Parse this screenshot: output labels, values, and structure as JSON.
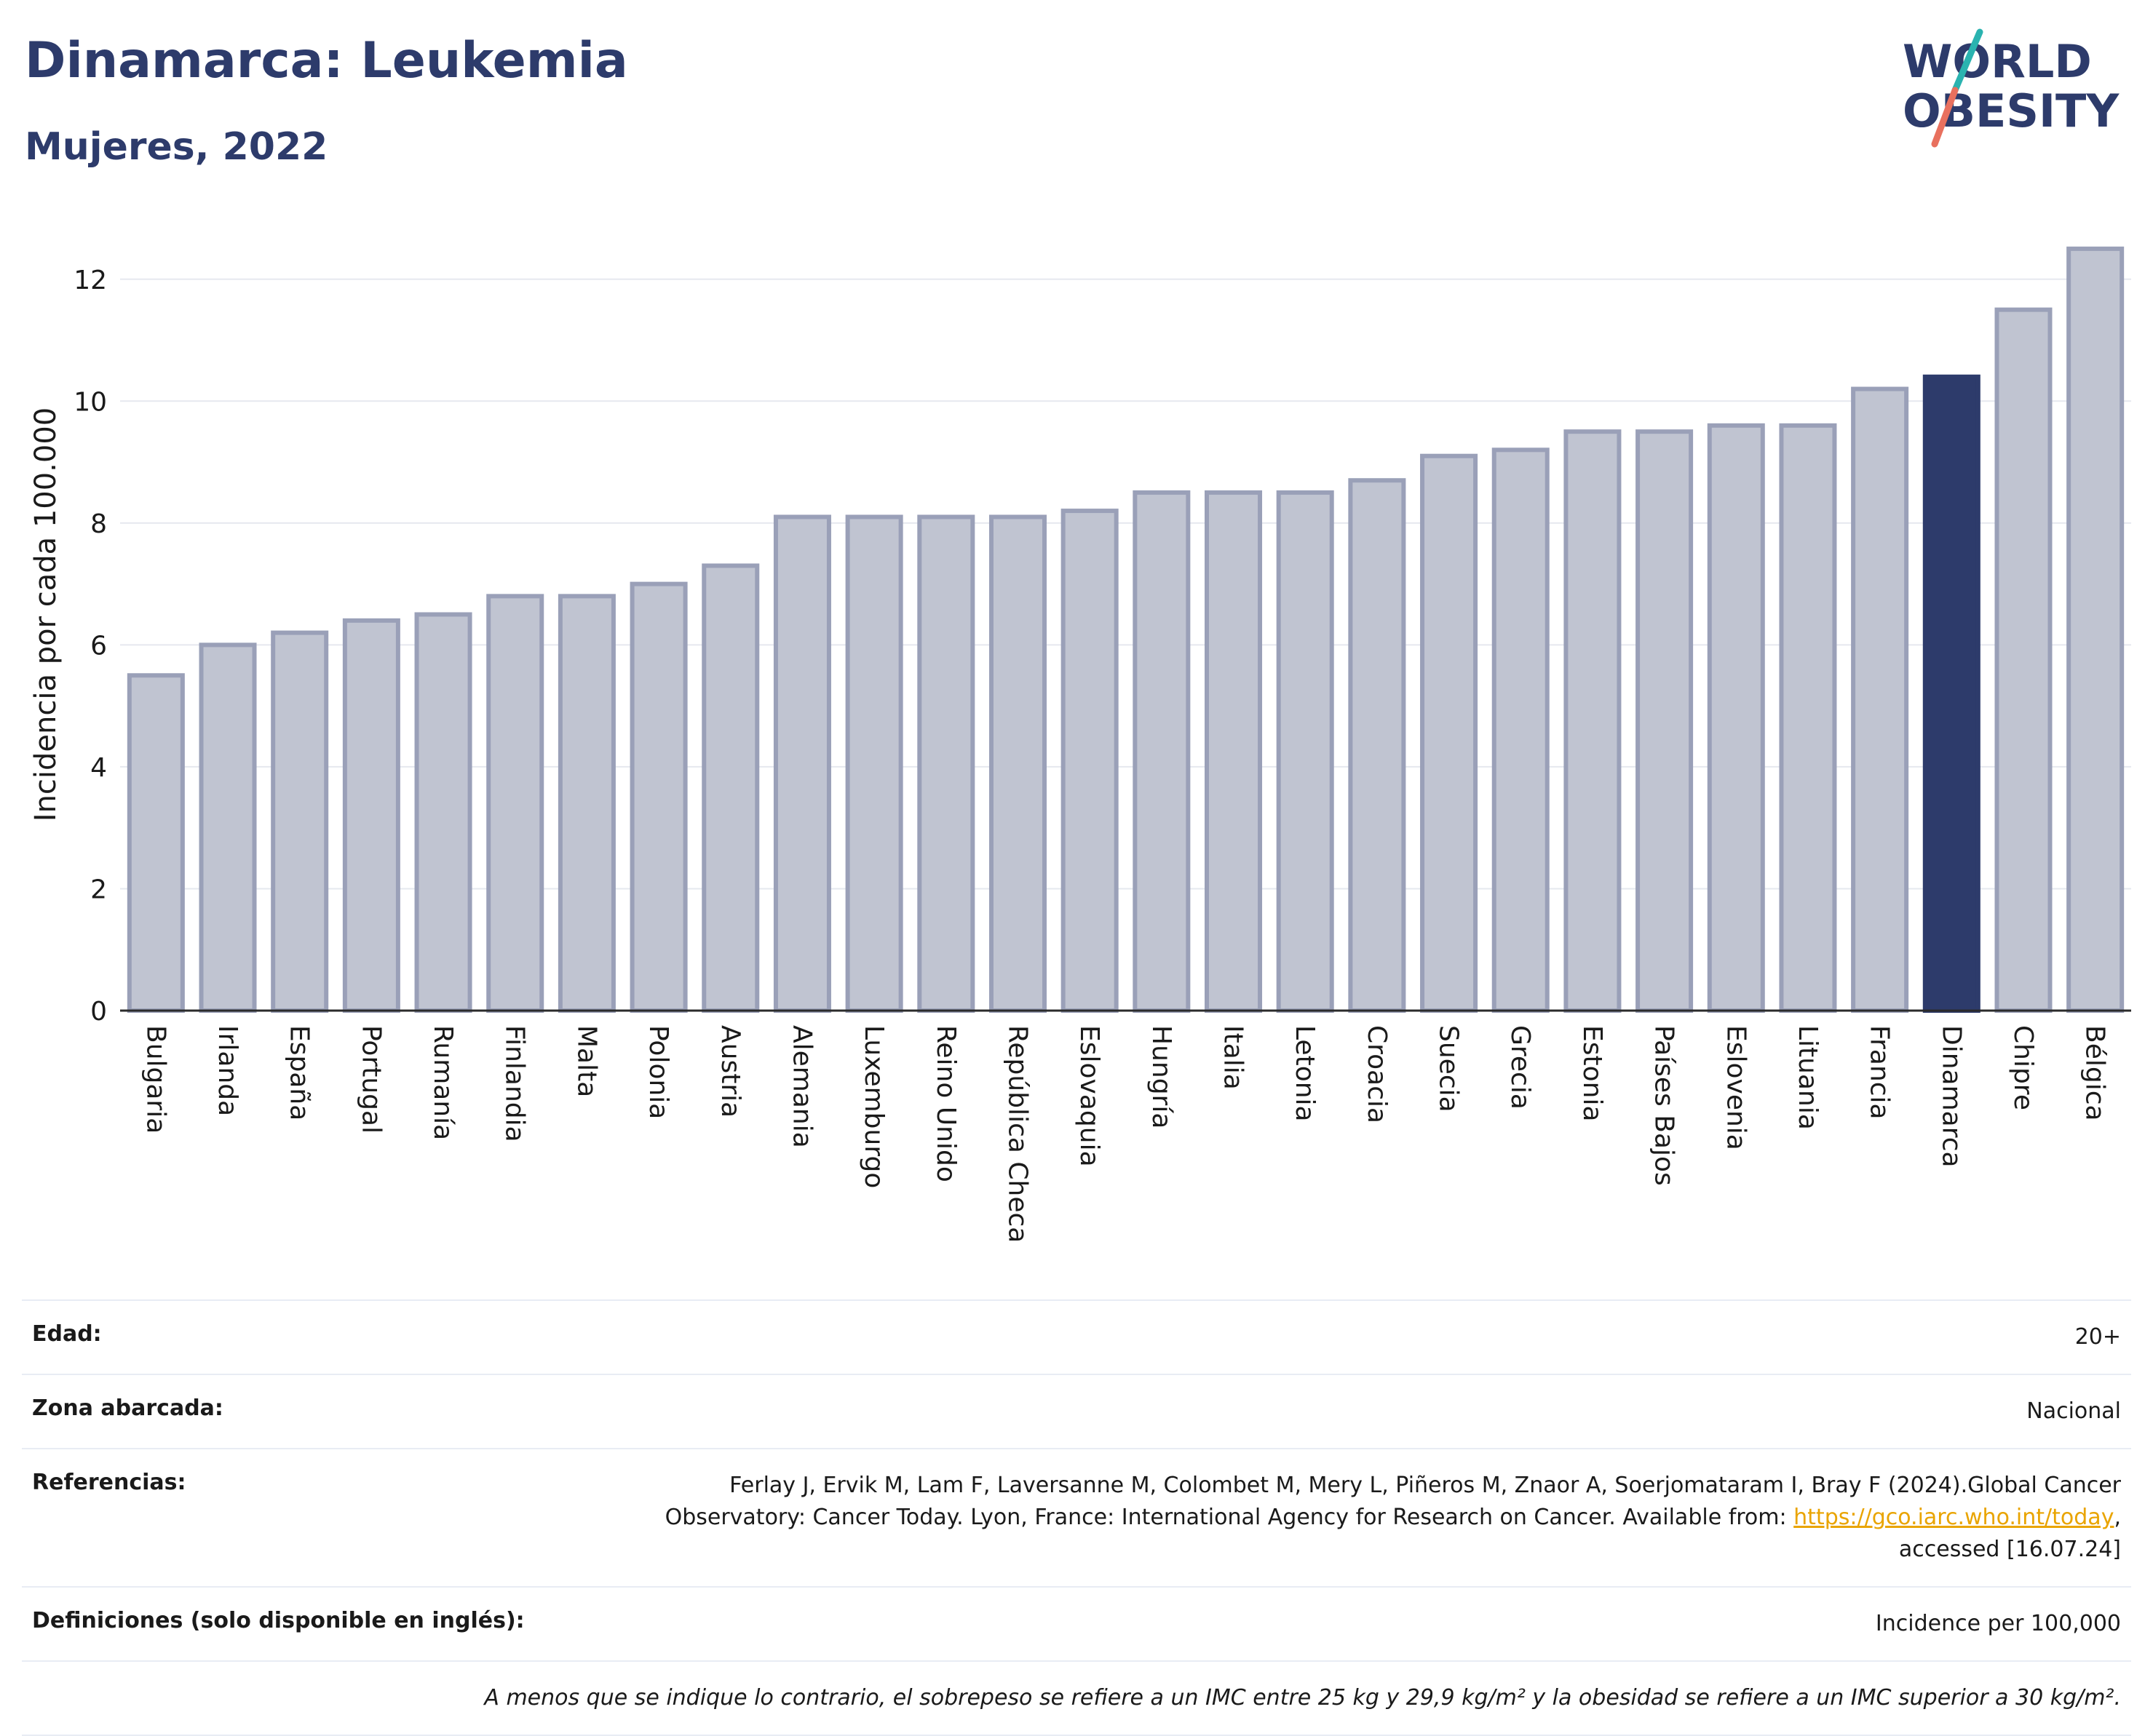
{
  "header": {
    "title": "Dinamarca: Leukemia",
    "subtitle": "Mujeres, 2022"
  },
  "logo": {
    "line1": "WORLD",
    "line2": "OBESITY",
    "colors": {
      "text": "#2d3b6b",
      "slash_top": "#2ab3b0",
      "slash_bottom": "#e8705e"
    }
  },
  "chart_data": {
    "type": "bar",
    "ylabel": "Incidencia por cada 100.000",
    "ylim": [
      0,
      13
    ],
    "yticks": [
      0,
      2,
      4,
      6,
      8,
      10,
      12
    ],
    "grid": true,
    "categories": [
      "Bulgaria",
      "Irlanda",
      "España",
      "Portugal",
      "Rumanía",
      "Finlandia",
      "Malta",
      "Polonia",
      "Austria",
      "Alemania",
      "Luxemburgo",
      "Reino Unido",
      "República Checa",
      "Eslovaquia",
      "Hungría",
      "Italia",
      "Letonia",
      "Croacia",
      "Suecia",
      "Grecia",
      "Estonia",
      "Países Bajos",
      "Eslovenia",
      "Lituania",
      "Francia",
      "Dinamarca",
      "Chipre",
      "Bélgica"
    ],
    "values": [
      5.5,
      6.0,
      6.2,
      6.4,
      6.5,
      6.8,
      6.8,
      7.0,
      7.3,
      8.1,
      8.1,
      8.1,
      8.1,
      8.2,
      8.5,
      8.5,
      8.5,
      8.7,
      9.1,
      9.2,
      9.5,
      9.5,
      9.6,
      9.6,
      10.2,
      10.4,
      11.5,
      12.5
    ],
    "highlight": "Dinamarca",
    "colors": {
      "bar": "#c0c4d1",
      "bar_border": "#9aa0b8",
      "highlight": "#2d3b6b"
    }
  },
  "meta": {
    "age_label": "Edad:",
    "age_value": "20+",
    "area_label": "Zona abarcada:",
    "area_value": "Nacional",
    "ref_label": "Referencias:",
    "ref_text_1": "Ferlay J, Ervik M, Lam F, Laversanne M, Colombet M, Mery L, Piñeros M, Znaor A, Soerjomataram I, Bray F (2024).Global Cancer Observatory: Cancer Today. Lyon, France: International Agency for Research on Cancer. Available from: ",
    "ref_link": "https://gco.iarc.who.int/today",
    "ref_text_2": ", accessed [16.07.24]",
    "def_label": "Definiciones (solo disponible en inglés):",
    "def_value": "Incidence per 100,000",
    "note": "A menos que se indique lo contrario, el sobrepeso se refiere a un IMC entre 25 kg y 29,9 kg/m² y la obesidad se refiere a un IMC superior a 30 kg/m²."
  }
}
